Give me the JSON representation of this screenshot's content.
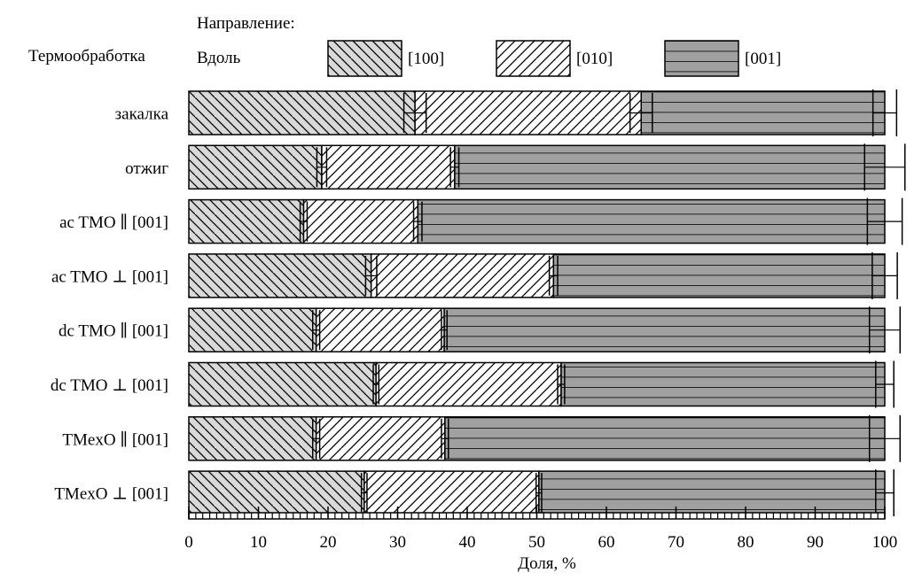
{
  "chart_data": {
    "type": "bar",
    "orientation": "horizontal",
    "stacked": true,
    "title": "",
    "legend_title": "Направление:",
    "row_header": "Термообработка",
    "legend_prefix": "Вдоль",
    "xlabel": "Доля, %",
    "ylabel": "",
    "xlim": [
      0,
      100
    ],
    "xticks": [
      0,
      10,
      20,
      30,
      40,
      50,
      60,
      70,
      80,
      90,
      100
    ],
    "legend_position": "top",
    "categories": [
      "закалка",
      "отжиг",
      "ac TMO ∥ [001]",
      "ac TMO ⊥ [001]",
      "dc TMO ∥ [001]",
      "dc TMO ⊥ [001]",
      "TMexO ∥ [001]",
      "TMexO ⊥ [001]"
    ],
    "series": [
      {
        "name": "[100]",
        "color": "#d9d9d9",
        "pattern": "back-diagonal",
        "values": [
          32.5,
          19.1,
          16.5,
          26.2,
          18.3,
          26.9,
          18.3,
          25.2
        ],
        "errors": [
          1.6,
          0.7,
          0.5,
          0.8,
          0.5,
          0.4,
          0.5,
          0.4
        ]
      },
      {
        "name": "[010]",
        "color": "#ffffff",
        "pattern": "forward-diagonal",
        "values": [
          32.5,
          19.1,
          16.4,
          26.2,
          18.4,
          26.6,
          18.5,
          25.1
        ],
        "errors": [
          1.6,
          0.6,
          0.6,
          0.6,
          0.4,
          0.5,
          0.5,
          0.4
        ]
      },
      {
        "name": "[001]",
        "color": "#a0a0a0",
        "pattern": "horizontal",
        "values": [
          35.0,
          61.8,
          67.1,
          47.6,
          63.3,
          46.5,
          63.2,
          49.7
        ],
        "errors": [
          1.7,
          2.9,
          2.5,
          1.8,
          2.2,
          1.3,
          2.2,
          1.3
        ]
      }
    ]
  }
}
